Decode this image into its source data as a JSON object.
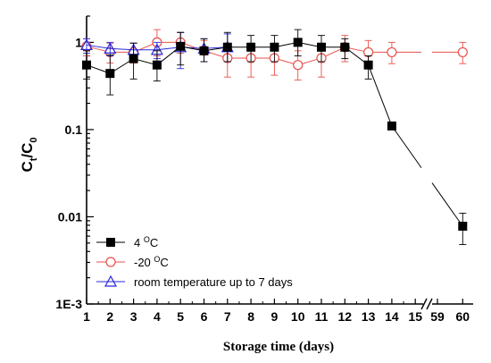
{
  "chart_data": {
    "type": "line",
    "xlabel": "Storage time (days)",
    "ylabel": {
      "main": "C",
      "sub1": "t",
      "sep": "/C",
      "sub2": "0"
    },
    "yscale": "log",
    "ylim": [
      0.001,
      2
    ],
    "yticks": [
      {
        "value": 1,
        "label": "1"
      },
      {
        "value": 0.1,
        "label": "0.1"
      },
      {
        "value": 0.01,
        "label": "0.01"
      },
      {
        "value": 0.001,
        "label": "1E-3"
      }
    ],
    "xticks": [
      {
        "value": 1,
        "label": "1"
      },
      {
        "value": 2,
        "label": "2"
      },
      {
        "value": 3,
        "label": "3"
      },
      {
        "value": 4,
        "label": "4"
      },
      {
        "value": 5,
        "label": "5"
      },
      {
        "value": 6,
        "label": "6"
      },
      {
        "value": 7,
        "label": "7"
      },
      {
        "value": 8,
        "label": "8"
      },
      {
        "value": 9,
        "label": "9"
      },
      {
        "value": 10,
        "label": "10"
      },
      {
        "value": 11,
        "label": "11"
      },
      {
        "value": 12,
        "label": "12"
      },
      {
        "value": 13,
        "label": "13"
      },
      {
        "value": 14,
        "label": "14"
      },
      {
        "value": 15,
        "label": "15"
      },
      {
        "value": 59,
        "label": "59"
      },
      {
        "value": 60,
        "label": "60"
      }
    ],
    "axis_break": "between 15 and 59",
    "legend_position": "bottom-left",
    "grid": false,
    "series": [
      {
        "name": "4 °C",
        "legend": {
          "prefix": "4 ",
          "sup": "O",
          "suffix": "C"
        },
        "color": "#000000",
        "marker": "square-filled",
        "points": [
          {
            "x": 1,
            "y": 0.55,
            "lo": 0.38,
            "hi": 0.8
          },
          {
            "x": 2,
            "y": 0.44,
            "lo": 0.25,
            "hi": 0.72
          },
          {
            "x": 3,
            "y": 0.65,
            "lo": 0.38,
            "hi": 0.98
          },
          {
            "x": 4,
            "y": 0.55,
            "lo": 0.36,
            "hi": 0.8
          },
          {
            "x": 5,
            "y": 0.9,
            "lo": 0.55,
            "hi": 1.3
          },
          {
            "x": 6,
            "y": 0.8,
            "lo": 0.6,
            "hi": 1.1
          },
          {
            "x": 7,
            "y": 0.88,
            "lo": 0.6,
            "hi": 1.3
          },
          {
            "x": 8,
            "y": 0.88,
            "lo": 0.6,
            "hi": 1.2
          },
          {
            "x": 9,
            "y": 0.88,
            "lo": 0.6,
            "hi": 1.2
          },
          {
            "x": 10,
            "y": 1.0,
            "lo": 0.7,
            "hi": 1.4
          },
          {
            "x": 11,
            "y": 0.88,
            "lo": 0.6,
            "hi": 1.2
          },
          {
            "x": 12,
            "y": 0.88,
            "lo": 0.65,
            "hi": 1.1
          },
          {
            "x": 13,
            "y": 0.55,
            "lo": 0.38,
            "hi": 0.7
          },
          {
            "x": 14,
            "y": 0.11,
            "lo": 0.1,
            "hi": 0.12
          },
          {
            "x": 60,
            "y": 0.0078,
            "lo": 0.0048,
            "hi": 0.011
          }
        ]
      },
      {
        "name": "-20 °C",
        "legend": {
          "prefix": "-20 ",
          "sup": "O",
          "suffix": "C"
        },
        "color": "#e8504a",
        "marker": "circle-open",
        "points": [
          {
            "x": 1,
            "y": 0.9,
            "lo": 0.7,
            "hi": 1.1
          },
          {
            "x": 2,
            "y": 0.77,
            "lo": 0.58,
            "hi": 0.98
          },
          {
            "x": 3,
            "y": 0.77,
            "lo": 0.58,
            "hi": 0.98
          },
          {
            "x": 4,
            "y": 1.0,
            "lo": 0.7,
            "hi": 1.4
          },
          {
            "x": 5,
            "y": 1.0,
            "lo": 0.75,
            "hi": 1.3
          },
          {
            "x": 6,
            "y": 0.8,
            "lo": 0.6,
            "hi": 1.05
          },
          {
            "x": 7,
            "y": 0.66,
            "lo": 0.4,
            "hi": 0.98
          },
          {
            "x": 8,
            "y": 0.66,
            "lo": 0.4,
            "hi": 0.98
          },
          {
            "x": 9,
            "y": 0.66,
            "lo": 0.42,
            "hi": 0.98
          },
          {
            "x": 10,
            "y": 0.55,
            "lo": 0.37,
            "hi": 0.8
          },
          {
            "x": 11,
            "y": 0.66,
            "lo": 0.4,
            "hi": 0.98
          },
          {
            "x": 12,
            "y": 0.88,
            "lo": 0.6,
            "hi": 1.2
          },
          {
            "x": 13,
            "y": 0.77,
            "lo": 0.55,
            "hi": 1.05
          },
          {
            "x": 14,
            "y": 0.77,
            "lo": 0.57,
            "hi": 1.0
          },
          {
            "x": 60,
            "y": 0.77,
            "lo": 0.57,
            "hi": 1.0
          }
        ]
      },
      {
        "name": "room temperature up to 7 days",
        "legend": {
          "prefix": "room temperature up to 7 days",
          "sup": "",
          "suffix": ""
        },
        "color": "#2a2ad8",
        "marker": "triangle-open",
        "points": [
          {
            "x": 1,
            "y": 0.93,
            "lo": 0.75,
            "hi": 1.1
          },
          {
            "x": 2,
            "y": 0.85,
            "lo": 0.7,
            "hi": 1.0
          },
          {
            "x": 3,
            "y": 0.82,
            "lo": 0.68,
            "hi": 0.98
          },
          {
            "x": 4,
            "y": 0.82,
            "lo": 0.65,
            "hi": 1.0
          },
          {
            "x": 5,
            "y": 0.88,
            "lo": 0.5,
            "hi": 1.3
          },
          {
            "x": 6,
            "y": 0.85,
            "lo": 0.6,
            "hi": 1.1
          },
          {
            "x": 7,
            "y": 0.88,
            "lo": 0.6,
            "hi": 1.25
          }
        ]
      }
    ]
  }
}
